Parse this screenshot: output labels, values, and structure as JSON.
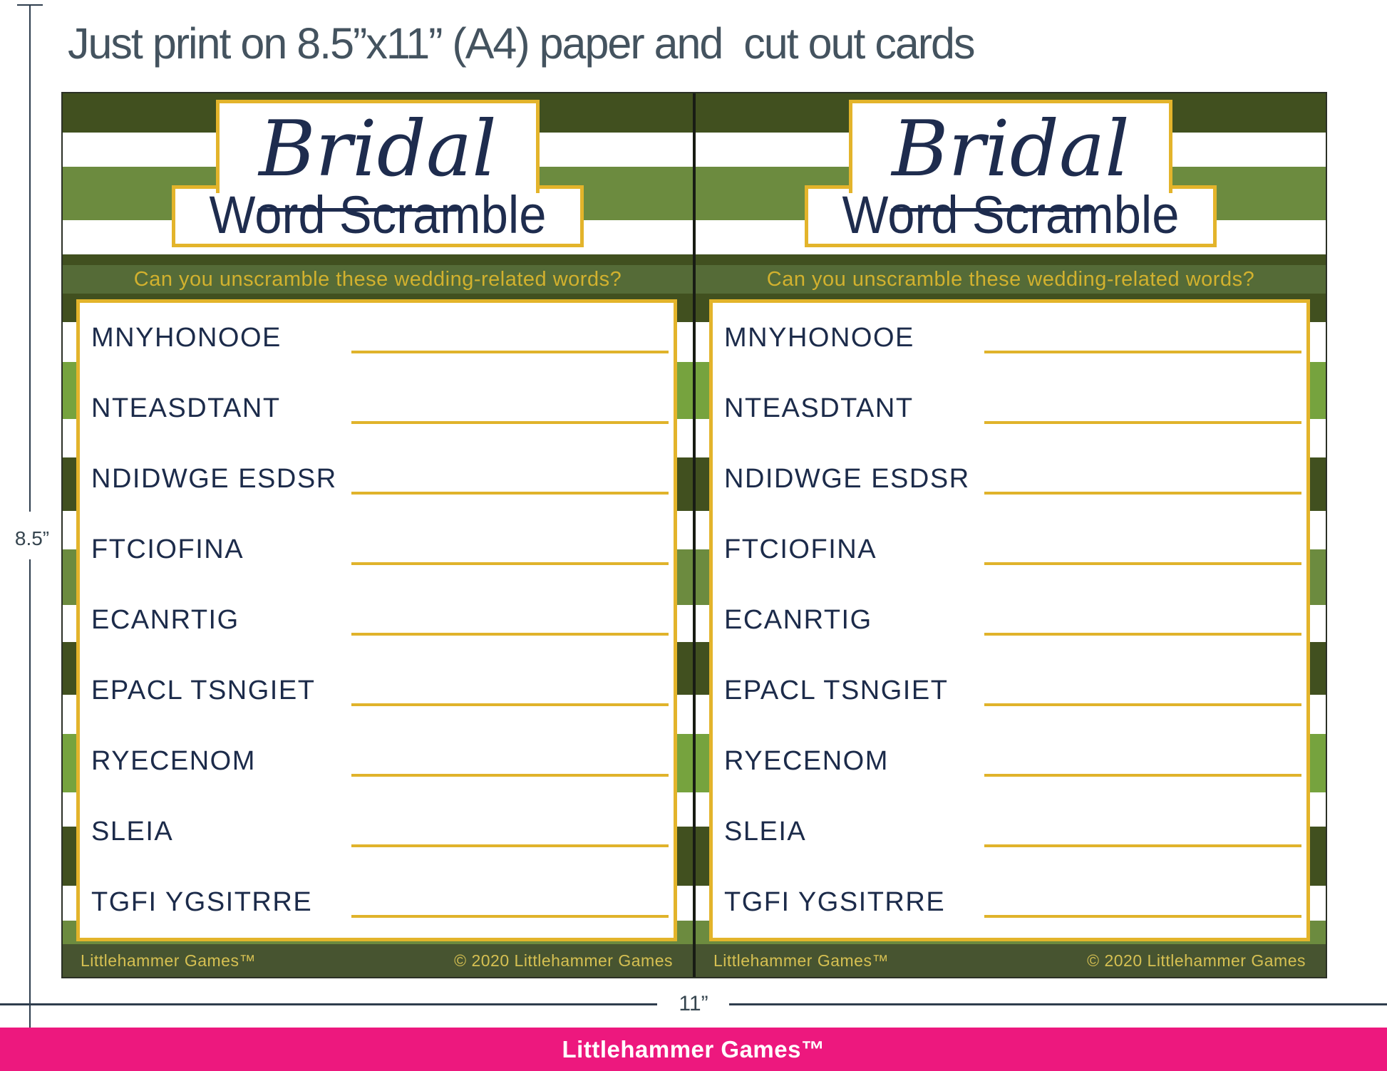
{
  "page": {
    "instruction": "Just print on 8.5”x11” (A4) paper and  cut out cards",
    "height_dimension": "8.5”",
    "width_dimension": "11”",
    "brand_bar": "Littlehammer Games™"
  },
  "card": {
    "script_title": "Bridal",
    "main_title": "Word Scramble",
    "subtitle": "Can you unscramble these wedding-related words?",
    "words": [
      "MNYHONOOE",
      "NTEASDTANT",
      "NDIDWGE ESDSR",
      "FTCIOFINA",
      "ECANRTIG",
      "EPACL TSNGIET",
      "RYECENOM",
      "SLEIA",
      "TGFI YGSITRRE"
    ],
    "footer_left": "Littlehammer Games™",
    "footer_right": "© 2020 Littlehammer Games"
  },
  "colors": {
    "gold": "#E3B42B",
    "navy": "#1E2C4E",
    "dark_green": "#41501F",
    "medium_green": "#6C8B3F",
    "light_green": "#76A33E",
    "subtitle_band_green": "#556B37",
    "card_footer_green": "#475430",
    "brand_pink": "#ED187E",
    "heading_slate": "#44535F"
  }
}
